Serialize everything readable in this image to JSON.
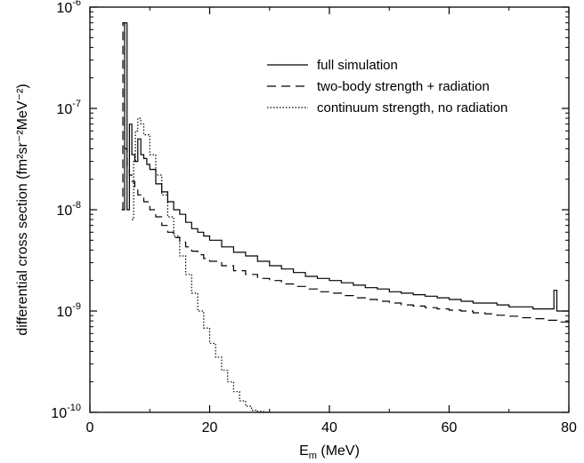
{
  "chart_data": {
    "type": "line",
    "xlabel": "E_m (MeV)",
    "xlabel_main": "E",
    "xlabel_sub": "m",
    "xlabel_unit": " (MeV)",
    "ylabel": "differential cross section (fm²sr⁻²MeV⁻²)",
    "xlim": [
      0,
      80
    ],
    "ylim": [
      1e-10,
      1e-06
    ],
    "yscale": "log",
    "xticks": [
      0,
      20,
      40,
      60,
      80
    ],
    "xtick_labels": [
      "0",
      "20",
      "40",
      "60",
      "80"
    ],
    "yticks": [
      1e-10,
      1e-09,
      1e-08,
      1e-07,
      1e-06
    ],
    "ytick_labels": [
      {
        "base": "10",
        "exp": "-10"
      },
      {
        "base": "10",
        "exp": "-9"
      },
      {
        "base": "10",
        "exp": "-8"
      },
      {
        "base": "10",
        "exp": "-7"
      },
      {
        "base": "10",
        "exp": "-6"
      }
    ],
    "grid": false,
    "legend_position": "top-right",
    "series": [
      {
        "name": "full simulation",
        "style": "solid",
        "x": [
          5.5,
          5.8,
          6.2,
          6.6,
          7.0,
          7.5,
          8.0,
          8.5,
          9.0,
          9.5,
          10,
          11,
          12,
          13,
          14,
          15,
          16,
          17,
          18,
          19,
          20,
          22,
          24,
          26,
          28,
          30,
          32,
          34,
          36,
          38,
          40,
          42,
          44,
          46,
          48,
          50,
          52,
          54,
          56,
          58,
          60,
          62,
          64,
          66,
          68,
          70,
          72,
          74,
          76,
          77.5,
          78,
          78.5,
          80
        ],
        "y": [
          1e-08,
          7e-07,
          1e-08,
          7e-08,
          3.5e-08,
          3e-08,
          5e-08,
          3.5e-08,
          3.2e-08,
          2.8e-08,
          2.5e-08,
          1.8e-08,
          1.5e-08,
          1.2e-08,
          1e-08,
          9e-09,
          7.5e-09,
          6.5e-09,
          6e-09,
          5.5e-09,
          5e-09,
          4.3e-09,
          3.8e-09,
          3.5e-09,
          3.1e-09,
          2.8e-09,
          2.6e-09,
          2.4e-09,
          2.2e-09,
          2.1e-09,
          2e-09,
          1.9e-09,
          1.8e-09,
          1.7e-09,
          1.65e-09,
          1.55e-09,
          1.5e-09,
          1.45e-09,
          1.4e-09,
          1.35e-09,
          1.3e-09,
          1.25e-09,
          1.2e-09,
          1.2e-09,
          1.15e-09,
          1.1e-09,
          1.1e-09,
          1.05e-09,
          1.05e-09,
          1.6e-09,
          1e-09,
          1e-09,
          1e-09
        ]
      },
      {
        "name": "two-body strength + radiation",
        "style": "dashed",
        "x": [
          5.3,
          5.5,
          5.8,
          6.2,
          6.6,
          7.0,
          7.5,
          8.0,
          8.5,
          9.0,
          10,
          11,
          12,
          13,
          14,
          15,
          16,
          17,
          18,
          19,
          20,
          22,
          24,
          26,
          28,
          30,
          32,
          34,
          36,
          38,
          40,
          42,
          44,
          46,
          48,
          50,
          52,
          54,
          56,
          58,
          60,
          62,
          64,
          66,
          68,
          70,
          72,
          74,
          76,
          78,
          80
        ],
        "y": [
          1e-08,
          7e-07,
          4e-08,
          2.5e-08,
          2.2e-08,
          1.9e-08,
          1.6e-08,
          1.4e-08,
          1.3e-08,
          1.2e-08,
          1e-08,
          8.5e-09,
          7e-09,
          6e-09,
          5.3e-09,
          4.8e-09,
          4.3e-09,
          3.9e-09,
          3.6e-09,
          3.3e-09,
          3.1e-09,
          2.8e-09,
          2.5e-09,
          2.3e-09,
          2.1e-09,
          2e-09,
          1.85e-09,
          1.75e-09,
          1.65e-09,
          1.55e-09,
          1.5e-09,
          1.42e-09,
          1.35e-09,
          1.3e-09,
          1.25e-09,
          1.2e-09,
          1.15e-09,
          1.12e-09,
          1.08e-09,
          1.05e-09,
          1.02e-09,
          1e-09,
          9.6e-10,
          9.4e-10,
          9.1e-10,
          8.9e-10,
          8.6e-10,
          8.4e-10,
          8.1e-10,
          7.8e-10,
          6.5e-10
        ]
      },
      {
        "name": "continuum strength, no radiation",
        "style": "dotted",
        "x": [
          7.0,
          7.3,
          7.6,
          8.0,
          8.5,
          9.0,
          10,
          11,
          12,
          13,
          14,
          15,
          16,
          17,
          18,
          19,
          20,
          21,
          22,
          23,
          24,
          25,
          26,
          27,
          28,
          29,
          30
        ],
        "y": [
          8e-09,
          3e-08,
          6e-08,
          8e-08,
          7e-08,
          5.5e-08,
          3.5e-08,
          2.2e-08,
          1.4e-08,
          8.5e-09,
          5.5e-09,
          3.5e-09,
          2.3e-09,
          1.5e-09,
          1e-09,
          6.8e-10,
          4.8e-10,
          3.5e-10,
          2.6e-10,
          2e-10,
          1.6e-10,
          1.3e-10,
          1.15e-10,
          1.05e-10,
          1.02e-10,
          1e-10,
          1e-10
        ]
      }
    ]
  }
}
